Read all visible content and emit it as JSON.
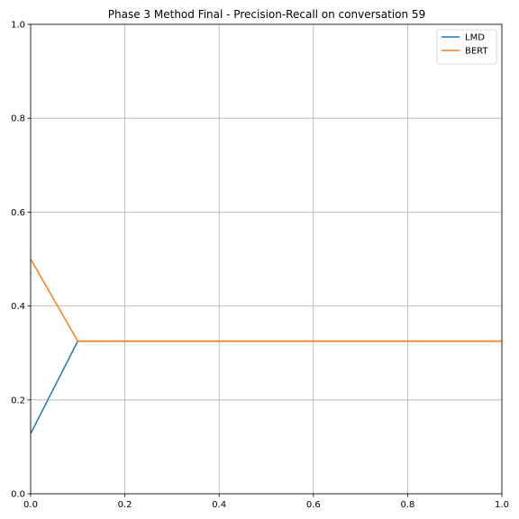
{
  "chart_data": {
    "type": "line",
    "title": "Phase 3 Method Final - Precision-Recall on conversation 59",
    "xlabel": "",
    "ylabel": "",
    "xlim": [
      0,
      1
    ],
    "ylim": [
      0,
      1
    ],
    "xticks": [
      "0.0",
      "0.2",
      "0.4",
      "0.6",
      "0.8",
      "1.0"
    ],
    "yticks": [
      "0.0",
      "0.2",
      "0.4",
      "0.6",
      "0.8",
      "1.0"
    ],
    "grid": true,
    "legend_position": "top-right",
    "series": [
      {
        "name": "LMD",
        "color": "#1f77b4",
        "x": [
          0.0,
          0.1,
          1.0
        ],
        "y": [
          0.128,
          0.325,
          0.325
        ]
      },
      {
        "name": "BERT",
        "color": "#ff7f0e",
        "x": [
          0.0,
          0.1,
          1.0
        ],
        "y": [
          0.5,
          0.325,
          0.325
        ]
      }
    ]
  }
}
